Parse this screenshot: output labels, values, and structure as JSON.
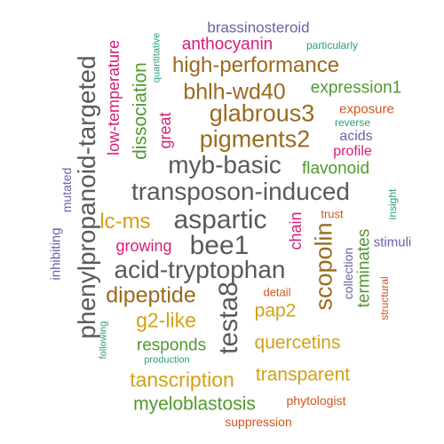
{
  "colors": {
    "gray": "#595959",
    "brown": "#9a6a1c",
    "green": "#4f9a2e",
    "gold": "#d4a017",
    "purple": "#6a61a8",
    "magenta": "#d61d79",
    "teal": "#2a9d7a",
    "orange": "#d2551b"
  },
  "words": {
    "brassinosteroid": "brassinosteroid",
    "quantitative": "quantitative",
    "anthocyanin": "anthocyanin",
    "particularly": "particularly",
    "high_performance": "high-performance",
    "bhlh_wd40": "bhlh-wd40",
    "expression1": "expression1",
    "glabrous3": "glabrous3",
    "exposure": "exposure",
    "reverse": "reverse",
    "pigments2": "pigments2",
    "acids": "acids",
    "profile": "profile",
    "myb_basic": "myb-basic",
    "flavonoid": "flavonoid",
    "transposon_induced": "transposon-induced",
    "trust": "trust",
    "insight": "insight",
    "lc_ms": "lc-ms",
    "aspartic": "aspartic",
    "growing": "growing",
    "bee1": "bee1",
    "stimuli": "stimuli",
    "acid_tryptophan": "acid-tryptophan",
    "detail": "detail",
    "dipeptide": "dipeptide",
    "pap2": "pap2",
    "g2_like": "g2-like",
    "responds": "responds",
    "quercetins": "quercetins",
    "production": "production",
    "tanscription": "tanscription",
    "transparent": "transparent",
    "myeloblastosis": "myeloblastosis",
    "phytologist": "phytologist",
    "suppression": "suppression",
    "phenylpropanoid_targeted": "phenylpropanoid-targeted",
    "low_temperature": "low-temperature",
    "dissociation": "dissociation",
    "great": "great",
    "mutated": "mutated",
    "inhibiting": "inhibiting",
    "following": "following",
    "testa8": "testa8",
    "chain": "chain",
    "scopolin": "scopolin",
    "collection": "collection",
    "terminates": "terminates",
    "structural": "structural"
  }
}
